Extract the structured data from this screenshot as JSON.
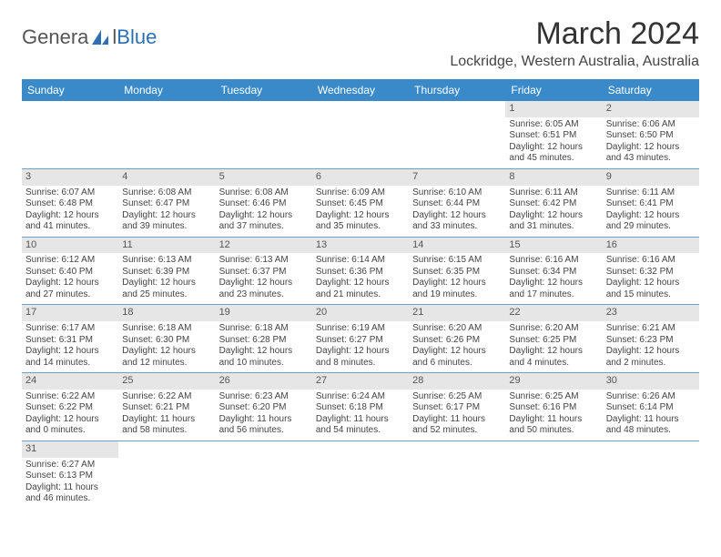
{
  "logo": {
    "part1": "Genera",
    "part2": "l",
    "part3": "Blue"
  },
  "title": "March 2024",
  "location": "Lockridge, Western Australia, Australia",
  "colors": {
    "header_bg": "#3a8ac9",
    "header_fg": "#ffffff",
    "daynum_bg": "#e6e6e6",
    "rule": "#6aa0cc",
    "logo_blue": "#2d6fb5"
  },
  "weekdays": [
    "Sunday",
    "Monday",
    "Tuesday",
    "Wednesday",
    "Thursday",
    "Friday",
    "Saturday"
  ],
  "weeks": [
    [
      null,
      null,
      null,
      null,
      null,
      {
        "n": "1",
        "sunrise": "Sunrise: 6:05 AM",
        "sunset": "Sunset: 6:51 PM",
        "day1": "Daylight: 12 hours",
        "day2": "and 45 minutes."
      },
      {
        "n": "2",
        "sunrise": "Sunrise: 6:06 AM",
        "sunset": "Sunset: 6:50 PM",
        "day1": "Daylight: 12 hours",
        "day2": "and 43 minutes."
      }
    ],
    [
      {
        "n": "3",
        "sunrise": "Sunrise: 6:07 AM",
        "sunset": "Sunset: 6:48 PM",
        "day1": "Daylight: 12 hours",
        "day2": "and 41 minutes."
      },
      {
        "n": "4",
        "sunrise": "Sunrise: 6:08 AM",
        "sunset": "Sunset: 6:47 PM",
        "day1": "Daylight: 12 hours",
        "day2": "and 39 minutes."
      },
      {
        "n": "5",
        "sunrise": "Sunrise: 6:08 AM",
        "sunset": "Sunset: 6:46 PM",
        "day1": "Daylight: 12 hours",
        "day2": "and 37 minutes."
      },
      {
        "n": "6",
        "sunrise": "Sunrise: 6:09 AM",
        "sunset": "Sunset: 6:45 PM",
        "day1": "Daylight: 12 hours",
        "day2": "and 35 minutes."
      },
      {
        "n": "7",
        "sunrise": "Sunrise: 6:10 AM",
        "sunset": "Sunset: 6:44 PM",
        "day1": "Daylight: 12 hours",
        "day2": "and 33 minutes."
      },
      {
        "n": "8",
        "sunrise": "Sunrise: 6:11 AM",
        "sunset": "Sunset: 6:42 PM",
        "day1": "Daylight: 12 hours",
        "day2": "and 31 minutes."
      },
      {
        "n": "9",
        "sunrise": "Sunrise: 6:11 AM",
        "sunset": "Sunset: 6:41 PM",
        "day1": "Daylight: 12 hours",
        "day2": "and 29 minutes."
      }
    ],
    [
      {
        "n": "10",
        "sunrise": "Sunrise: 6:12 AM",
        "sunset": "Sunset: 6:40 PM",
        "day1": "Daylight: 12 hours",
        "day2": "and 27 minutes."
      },
      {
        "n": "11",
        "sunrise": "Sunrise: 6:13 AM",
        "sunset": "Sunset: 6:39 PM",
        "day1": "Daylight: 12 hours",
        "day2": "and 25 minutes."
      },
      {
        "n": "12",
        "sunrise": "Sunrise: 6:13 AM",
        "sunset": "Sunset: 6:37 PM",
        "day1": "Daylight: 12 hours",
        "day2": "and 23 minutes."
      },
      {
        "n": "13",
        "sunrise": "Sunrise: 6:14 AM",
        "sunset": "Sunset: 6:36 PM",
        "day1": "Daylight: 12 hours",
        "day2": "and 21 minutes."
      },
      {
        "n": "14",
        "sunrise": "Sunrise: 6:15 AM",
        "sunset": "Sunset: 6:35 PM",
        "day1": "Daylight: 12 hours",
        "day2": "and 19 minutes."
      },
      {
        "n": "15",
        "sunrise": "Sunrise: 6:16 AM",
        "sunset": "Sunset: 6:34 PM",
        "day1": "Daylight: 12 hours",
        "day2": "and 17 minutes."
      },
      {
        "n": "16",
        "sunrise": "Sunrise: 6:16 AM",
        "sunset": "Sunset: 6:32 PM",
        "day1": "Daylight: 12 hours",
        "day2": "and 15 minutes."
      }
    ],
    [
      {
        "n": "17",
        "sunrise": "Sunrise: 6:17 AM",
        "sunset": "Sunset: 6:31 PM",
        "day1": "Daylight: 12 hours",
        "day2": "and 14 minutes."
      },
      {
        "n": "18",
        "sunrise": "Sunrise: 6:18 AM",
        "sunset": "Sunset: 6:30 PM",
        "day1": "Daylight: 12 hours",
        "day2": "and 12 minutes."
      },
      {
        "n": "19",
        "sunrise": "Sunrise: 6:18 AM",
        "sunset": "Sunset: 6:28 PM",
        "day1": "Daylight: 12 hours",
        "day2": "and 10 minutes."
      },
      {
        "n": "20",
        "sunrise": "Sunrise: 6:19 AM",
        "sunset": "Sunset: 6:27 PM",
        "day1": "Daylight: 12 hours",
        "day2": "and 8 minutes."
      },
      {
        "n": "21",
        "sunrise": "Sunrise: 6:20 AM",
        "sunset": "Sunset: 6:26 PM",
        "day1": "Daylight: 12 hours",
        "day2": "and 6 minutes."
      },
      {
        "n": "22",
        "sunrise": "Sunrise: 6:20 AM",
        "sunset": "Sunset: 6:25 PM",
        "day1": "Daylight: 12 hours",
        "day2": "and 4 minutes."
      },
      {
        "n": "23",
        "sunrise": "Sunrise: 6:21 AM",
        "sunset": "Sunset: 6:23 PM",
        "day1": "Daylight: 12 hours",
        "day2": "and 2 minutes."
      }
    ],
    [
      {
        "n": "24",
        "sunrise": "Sunrise: 6:22 AM",
        "sunset": "Sunset: 6:22 PM",
        "day1": "Daylight: 12 hours",
        "day2": "and 0 minutes."
      },
      {
        "n": "25",
        "sunrise": "Sunrise: 6:22 AM",
        "sunset": "Sunset: 6:21 PM",
        "day1": "Daylight: 11 hours",
        "day2": "and 58 minutes."
      },
      {
        "n": "26",
        "sunrise": "Sunrise: 6:23 AM",
        "sunset": "Sunset: 6:20 PM",
        "day1": "Daylight: 11 hours",
        "day2": "and 56 minutes."
      },
      {
        "n": "27",
        "sunrise": "Sunrise: 6:24 AM",
        "sunset": "Sunset: 6:18 PM",
        "day1": "Daylight: 11 hours",
        "day2": "and 54 minutes."
      },
      {
        "n": "28",
        "sunrise": "Sunrise: 6:25 AM",
        "sunset": "Sunset: 6:17 PM",
        "day1": "Daylight: 11 hours",
        "day2": "and 52 minutes."
      },
      {
        "n": "29",
        "sunrise": "Sunrise: 6:25 AM",
        "sunset": "Sunset: 6:16 PM",
        "day1": "Daylight: 11 hours",
        "day2": "and 50 minutes."
      },
      {
        "n": "30",
        "sunrise": "Sunrise: 6:26 AM",
        "sunset": "Sunset: 6:14 PM",
        "day1": "Daylight: 11 hours",
        "day2": "and 48 minutes."
      }
    ],
    [
      {
        "n": "31",
        "sunrise": "Sunrise: 6:27 AM",
        "sunset": "Sunset: 6:13 PM",
        "day1": "Daylight: 11 hours",
        "day2": "and 46 minutes."
      },
      null,
      null,
      null,
      null,
      null,
      null
    ]
  ]
}
